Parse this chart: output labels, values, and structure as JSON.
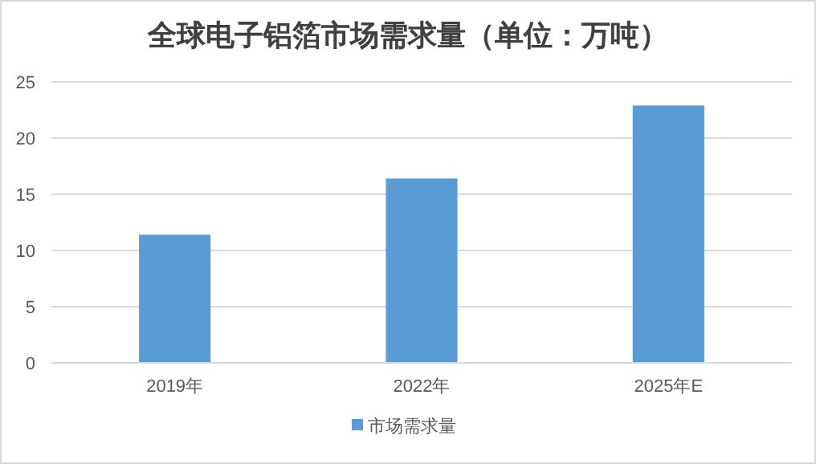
{
  "chart_data": {
    "type": "bar",
    "title": "全球电子铝箔市场需求量（单位：万吨）",
    "categories": [
      "2019年",
      "2022年",
      "2025年E"
    ],
    "series": [
      {
        "name": "市场需求量",
        "color": "#5b9bd5",
        "values": [
          11.4,
          16.4,
          22.9
        ]
      }
    ],
    "ylim": [
      0,
      25
    ],
    "yticks": [
      0,
      5,
      10,
      15,
      20,
      25
    ],
    "grid": "y",
    "legend": "bottom"
  }
}
